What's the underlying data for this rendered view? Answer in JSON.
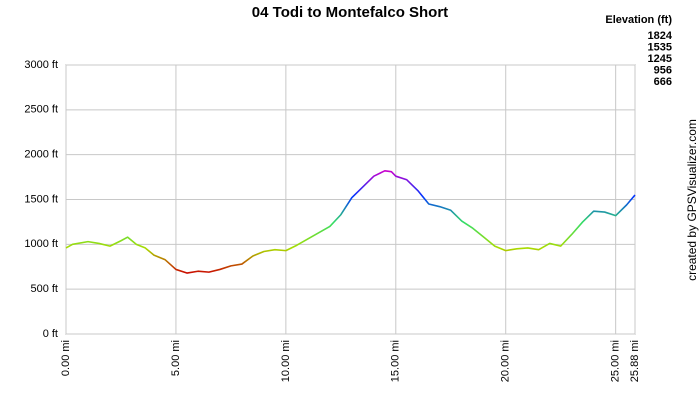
{
  "chart_data": {
    "type": "line",
    "title": "04 Todi to Montefalco Short",
    "legend_title": "Elevation (ft)",
    "credit": "created by GPSVisualizer.com",
    "color_scale": [
      {
        "value": 1824,
        "color": "#cc00cc"
      },
      {
        "value": 1535,
        "color": "#0033ff"
      },
      {
        "value": 1245,
        "color": "#33dd66"
      },
      {
        "value": 956,
        "color": "#aadd00"
      },
      {
        "value": 666,
        "color": "#cc0000"
      }
    ],
    "x": [
      0,
      0.3,
      1,
      1.5,
      2,
      2.5,
      2.8,
      3.2,
      3.6,
      4,
      4.5,
      5,
      5.5,
      6,
      6.5,
      7,
      7.5,
      8,
      8.5,
      9,
      9.5,
      10,
      10.5,
      11,
      11.5,
      12,
      12.5,
      13,
      13.5,
      14,
      14.5,
      14.8,
      15,
      15.5,
      16,
      16.5,
      17,
      17.5,
      18,
      18.5,
      19,
      19.5,
      20,
      20.5,
      21,
      21.5,
      22,
      22.5,
      23,
      23.5,
      24,
      24.5,
      25,
      25.5,
      25.88
    ],
    "series": [
      {
        "name": "Elevation",
        "values": [
          960,
          1000,
          1030,
          1010,
          980,
          1040,
          1080,
          1000,
          960,
          880,
          830,
          720,
          680,
          700,
          690,
          720,
          760,
          780,
          870,
          920,
          940,
          930,
          990,
          1060,
          1130,
          1200,
          1330,
          1520,
          1640,
          1760,
          1820,
          1810,
          1760,
          1720,
          1600,
          1450,
          1420,
          1380,
          1260,
          1180,
          1080,
          980,
          930,
          950,
          960,
          940,
          1010,
          980,
          1110,
          1250,
          1370,
          1360,
          1320,
          1440,
          1550
        ]
      }
    ],
    "xlim": [
      0,
      25.88
    ],
    "ylim": [
      0,
      3000
    ],
    "xticks": [
      {
        "value": 0,
        "label": "0.00 mi"
      },
      {
        "value": 5,
        "label": "5.00 mi"
      },
      {
        "value": 10,
        "label": "10.00 mi"
      },
      {
        "value": 15,
        "label": "15.00 mi"
      },
      {
        "value": 20,
        "label": "20.00 mi"
      },
      {
        "value": 25,
        "label": "25.00 mi"
      },
      {
        "value": 25.88,
        "label": "25.88 mi"
      }
    ],
    "yticks": [
      {
        "value": 0,
        "label": "0 ft"
      },
      {
        "value": 500,
        "label": "500 ft"
      },
      {
        "value": 1000,
        "label": "1000 ft"
      },
      {
        "value": 1500,
        "label": "1500 ft"
      },
      {
        "value": 2000,
        "label": "2000 ft"
      },
      {
        "value": 2500,
        "label": "2500 ft"
      },
      {
        "value": 3000,
        "label": "3000 ft"
      }
    ],
    "grid": true
  }
}
